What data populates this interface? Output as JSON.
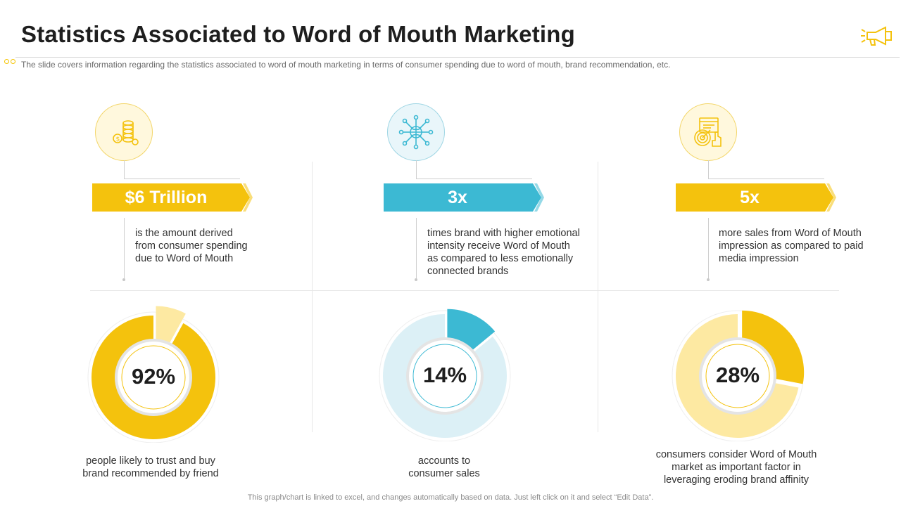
{
  "title": "Statistics Associated to Word of Mouth Marketing",
  "subtitle": "The slide covers information  regarding the statistics associated to word of mouth marketing in terms of consumer spending due to word of mouth, brand recommendation,  etc.",
  "colors": {
    "yellow": "#f4c20d",
    "blue": "#3cb9d3",
    "light_yellow": "#fde9a2",
    "light_blue": "#dcf0f6"
  },
  "columns": [
    {
      "icon": "coins-icon",
      "stat": "$6 Trillion",
      "description": [
        "is the amount derived",
        "from consumer spending",
        "due to Word of Mouth"
      ],
      "percent_label": "92%",
      "percent_value": 92,
      "caption": [
        "people likely to trust and buy",
        "brand recommended by friend"
      ]
    },
    {
      "icon": "network-globe-icon",
      "stat": "3x",
      "description": [
        "times brand with higher emotional",
        "intensity receive Word of Mouth",
        "as compared to less emotionally",
        "connected brands"
      ],
      "percent_label": "14%",
      "percent_value": 14,
      "caption": [
        "accounts to",
        "consumer sales"
      ]
    },
    {
      "icon": "target-marketing-icon",
      "stat": "5x",
      "description": [
        "more sales from Word of Mouth",
        "impression as compared to paid",
        "media impression"
      ],
      "percent_label": "28%",
      "percent_value": 28,
      "caption": [
        "consumers consider Word of Mouth",
        "market as important factor in",
        "leveraging eroding brand affinity"
      ]
    }
  ],
  "footer": "This graph/chart is linked to excel,  and changes automatically based on data. Just left click on it and select “Edit Data”."
}
